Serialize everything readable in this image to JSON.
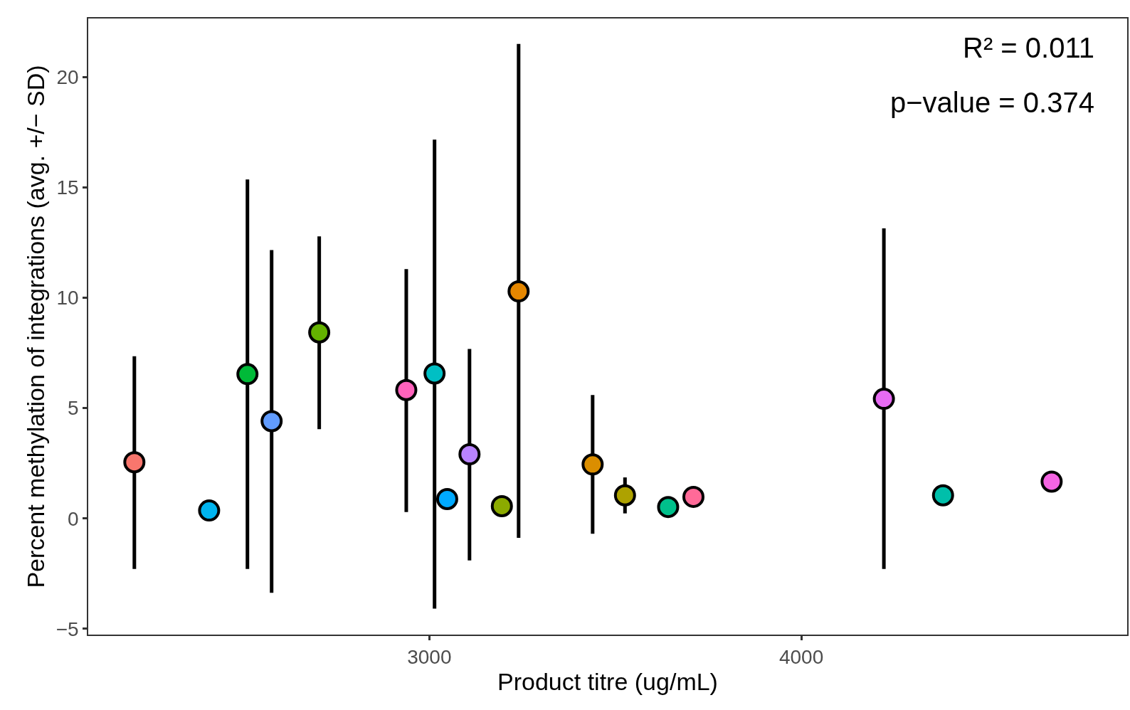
{
  "chart_data": {
    "type": "scatter",
    "xlabel": "Product titre (ug/mL)",
    "ylabel": "Percent methylation of integrations (avg. +/− SD)",
    "annotations": [
      "R² = 0.011",
      "p−value = 0.374"
    ],
    "x": [
      2207,
      2408,
      2511,
      2576,
      2704,
      2938,
      3014,
      3048,
      3108,
      3195,
      3240,
      3439,
      3526,
      3642,
      3710,
      4222,
      4381,
      4673
    ],
    "values": [
      2.55,
      0.36,
      6.54,
      4.41,
      8.43,
      5.82,
      6.57,
      0.88,
      2.91,
      0.56,
      10.29,
      2.45,
      1.05,
      0.52,
      0.98,
      5.42,
      1.05,
      1.67
    ],
    "errors": [
      [
        -2.29,
        7.35
      ],
      null,
      [
        -2.29,
        15.36
      ],
      [
        -3.37,
        12.16
      ],
      [
        4.05,
        12.78
      ],
      [
        0.29,
        11.3
      ],
      [
        -4.08,
        17.16
      ],
      null,
      [
        -1.9,
        7.68
      ],
      null,
      [
        -0.88,
        21.5
      ],
      [
        -0.69,
        5.59
      ],
      [
        0.23,
        1.86
      ],
      null,
      null,
      [
        -2.29,
        13.14
      ],
      null,
      null
    ],
    "colors": [
      "#f8766d",
      "#00b4ef",
      "#00ba38",
      "#619cff",
      "#64b200",
      "#ff62bc",
      "#00bfc4",
      "#00a9ff",
      "#b983ff",
      "#8cab00",
      "#e58700",
      "#db8e00",
      "#aea200",
      "#00c08b",
      "#ff6a98",
      "#e76bf3",
      "#00bfaa",
      "#f564e3"
    ],
    "marker": "circle",
    "xlim": [
      2083,
      4876
    ],
    "xticks": [
      3000,
      4000
    ],
    "ylim": [
      -5.26,
      22.65
    ],
    "yticks": [
      {
        "value": -5,
        "label": "−5"
      },
      0,
      5,
      10,
      15,
      20
    ]
  }
}
